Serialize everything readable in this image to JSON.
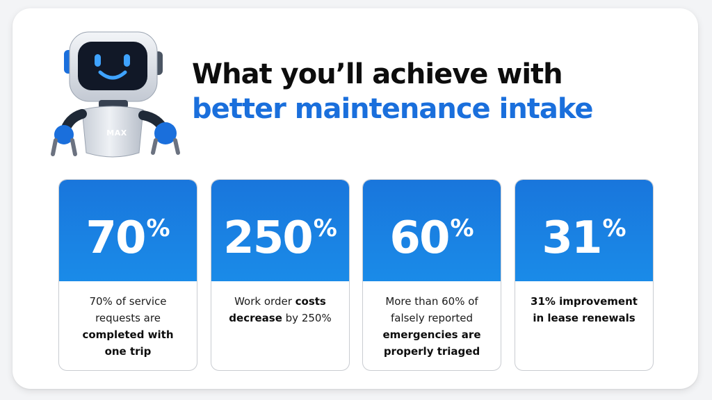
{
  "headline": {
    "line1": "What you’ll achieve with",
    "line2": "better maintenance intake"
  },
  "mascot": {
    "badge": "MAX"
  },
  "colors": {
    "brand_blue": "#1a6fdc",
    "card_blue": "#1a82e4"
  },
  "stats": [
    {
      "number": "70",
      "unit": "%",
      "desc": [
        {
          "text": "70% of service",
          "bold": false
        },
        {
          "text": "requests are",
          "bold": false
        },
        {
          "text": "completed with",
          "bold": true
        },
        {
          "text": "one trip",
          "bold": true
        }
      ]
    },
    {
      "number": "250",
      "unit": "%",
      "desc": [
        {
          "text": "Work order ",
          "bold": false
        },
        {
          "text": "costs",
          "bold": true
        },
        {
          "text": "decrease",
          "bold": true
        },
        {
          "text": " by 250%",
          "bold": false
        }
      ]
    },
    {
      "number": "60",
      "unit": "%",
      "desc": [
        {
          "text": "More than 60% of",
          "bold": false
        },
        {
          "text": "falsely reported",
          "bold": false
        },
        {
          "text": "emergencies are",
          "bold": true
        },
        {
          "text": "properly triaged",
          "bold": true
        }
      ]
    },
    {
      "number": "31",
      "unit": "%",
      "desc": [
        {
          "text": "31% improvement",
          "bold": true
        },
        {
          "text": "in lease renewals",
          "bold": true
        }
      ]
    }
  ]
}
